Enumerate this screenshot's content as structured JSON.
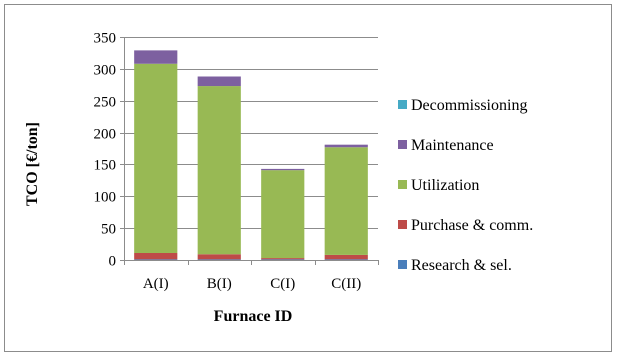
{
  "chart_data": {
    "type": "bar",
    "stacked": true,
    "categories": [
      "A(I)",
      "B(I)",
      "C(I)",
      "C(II)"
    ],
    "series": [
      {
        "name": "Research & sel.",
        "color": "#4a7ebb",
        "values": [
          1,
          1,
          1,
          1
        ]
      },
      {
        "name": "Purchase & comm.",
        "color": "#be4b48",
        "values": [
          10,
          8,
          2,
          7
        ]
      },
      {
        "name": "Utilization",
        "color": "#98b954",
        "values": [
          297,
          264,
          138,
          169
        ]
      },
      {
        "name": "Maintenance",
        "color": "#7d60a0",
        "values": [
          21,
          15,
          2,
          4
        ]
      },
      {
        "name": "Decommissioning",
        "color": "#46aac5",
        "values": [
          0,
          0,
          0,
          0
        ]
      }
    ],
    "xlabel": "Furnace ID",
    "ylabel": "TCO [€/ton]",
    "ylim": [
      0,
      350
    ],
    "yticks": [
      0,
      50,
      100,
      150,
      200,
      250,
      300,
      350
    ],
    "grid": true,
    "legend_position": "right",
    "legend_order": [
      "Decommissioning",
      "Maintenance",
      "Utilization",
      "Purchase & comm.",
      "Research & sel."
    ]
  }
}
